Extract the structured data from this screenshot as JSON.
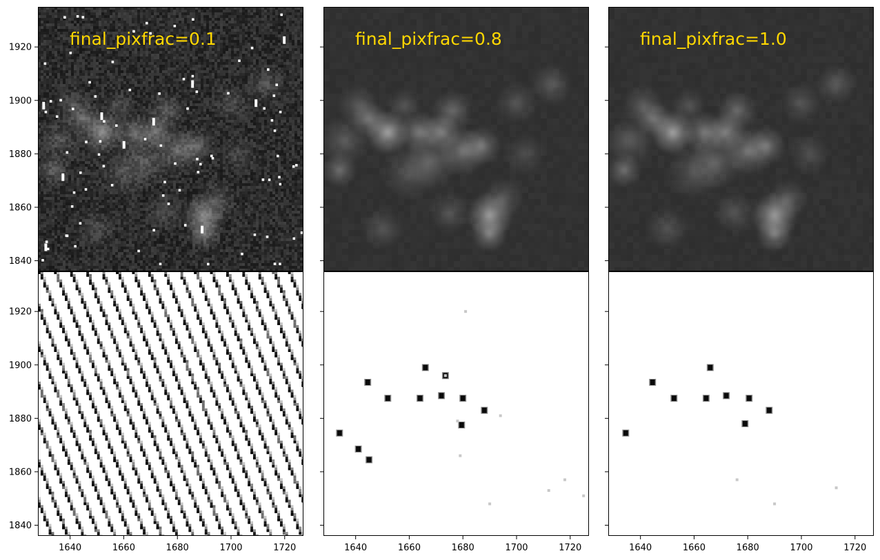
{
  "chart_data": {
    "type": "heatmap",
    "layout": "2 rows x 3 columns, shared axes",
    "xlim": [
      1628,
      1727
    ],
    "ylim": [
      1836,
      1935
    ],
    "x_ticks": [
      "1640",
      "1660",
      "1680",
      "1700",
      "1720"
    ],
    "y_ticks": [
      "1840",
      "1860",
      "1880",
      "1900",
      "1920"
    ],
    "x_tick_values": [
      1640,
      1660,
      1680,
      1700,
      1720
    ],
    "y_tick_values": [
      1840,
      1860,
      1880,
      1900,
      1920
    ],
    "title_color": "#ffd700",
    "columns": [
      {
        "title": "final_pixfrac=0.1",
        "science_image": {
          "colormap": "gray",
          "background": "noisy dark gray",
          "hot_pixels": "many scattered white pixels"
        },
        "weight_image": {
          "colormap": "gray_r",
          "pattern": "diagonal striped grid of dark samples"
        }
      },
      {
        "title": "final_pixfrac=0.8",
        "science_image": {
          "colormap": "gray",
          "background": "smooth dark gray"
        },
        "weight_image": {
          "colormap": "gray_r",
          "dark_spots": [
            [
              1634,
              1874.5
            ],
            [
              1644.5,
              1893.5
            ],
            [
              1641,
              1868.5
            ],
            [
              1645,
              1864.5
            ],
            [
              1652,
              1887.5
            ],
            [
              1664,
              1887.5
            ],
            [
              1666,
              1899
            ],
            [
              1672,
              1888.5
            ],
            [
              1680,
              1887.5
            ],
            [
              1688,
              1883
            ],
            [
              1679.5,
              1877.5
            ],
            [
              1673.5,
              1896
            ]
          ]
        }
      },
      {
        "title": "final_pixfrac=1.0",
        "science_image": {
          "colormap": "gray",
          "background": "smooth dark gray"
        },
        "weight_image": {
          "colormap": "gray_r",
          "dark_spots": [
            [
              1634.5,
              1874.5
            ],
            [
              1644.5,
              1893.5
            ],
            [
              1652.5,
              1887.5
            ],
            [
              1664.5,
              1887.5
            ],
            [
              1672,
              1888.5
            ],
            [
              1680.5,
              1887.5
            ],
            [
              1688,
              1883
            ],
            [
              1666,
              1899
            ],
            [
              1679,
              1878
            ]
          ]
        }
      }
    ],
    "sources": [
      {
        "x": 1652,
        "y": 1888,
        "flux": 0.9,
        "sigma": 3.2
      },
      {
        "x": 1645,
        "y": 1893,
        "flux": 0.55,
        "sigma": 2.6
      },
      {
        "x": 1636,
        "y": 1885,
        "flux": 0.35,
        "sigma": 3.5
      },
      {
        "x": 1664,
        "y": 1888,
        "flux": 0.6,
        "sigma": 3.0
      },
      {
        "x": 1672,
        "y": 1888,
        "flux": 0.65,
        "sigma": 2.8
      },
      {
        "x": 1680,
        "y": 1881,
        "flux": 0.55,
        "sigma": 3.5
      },
      {
        "x": 1687,
        "y": 1883,
        "flux": 0.55,
        "sigma": 2.8
      },
      {
        "x": 1676,
        "y": 1896,
        "flux": 0.45,
        "sigma": 3.0
      },
      {
        "x": 1668,
        "y": 1877,
        "flux": 0.4,
        "sigma": 4.0
      },
      {
        "x": 1660,
        "y": 1873,
        "flux": 0.3,
        "sigma": 4.0
      },
      {
        "x": 1634,
        "y": 1874,
        "flux": 0.5,
        "sigma": 2.5
      },
      {
        "x": 1690,
        "y": 1857,
        "flux": 0.85,
        "sigma": 3.3
      },
      {
        "x": 1690,
        "y": 1850,
        "flux": 0.6,
        "sigma": 2.6
      },
      {
        "x": 1695,
        "y": 1863,
        "flux": 0.35,
        "sigma": 3.0
      },
      {
        "x": 1641,
        "y": 1898,
        "flux": 0.35,
        "sigma": 3.0
      },
      {
        "x": 1700,
        "y": 1899,
        "flux": 0.3,
        "sigma": 3.0
      },
      {
        "x": 1713,
        "y": 1906,
        "flux": 0.35,
        "sigma": 3.0
      },
      {
        "x": 1658,
        "y": 1898,
        "flux": 0.3,
        "sigma": 2.5
      },
      {
        "x": 1650,
        "y": 1852,
        "flux": 0.3,
        "sigma": 3.0
      },
      {
        "x": 1675,
        "y": 1858,
        "flux": 0.3,
        "sigma": 3.0
      },
      {
        "x": 1703,
        "y": 1880,
        "flux": 0.25,
        "sigma": 3.0
      }
    ]
  }
}
